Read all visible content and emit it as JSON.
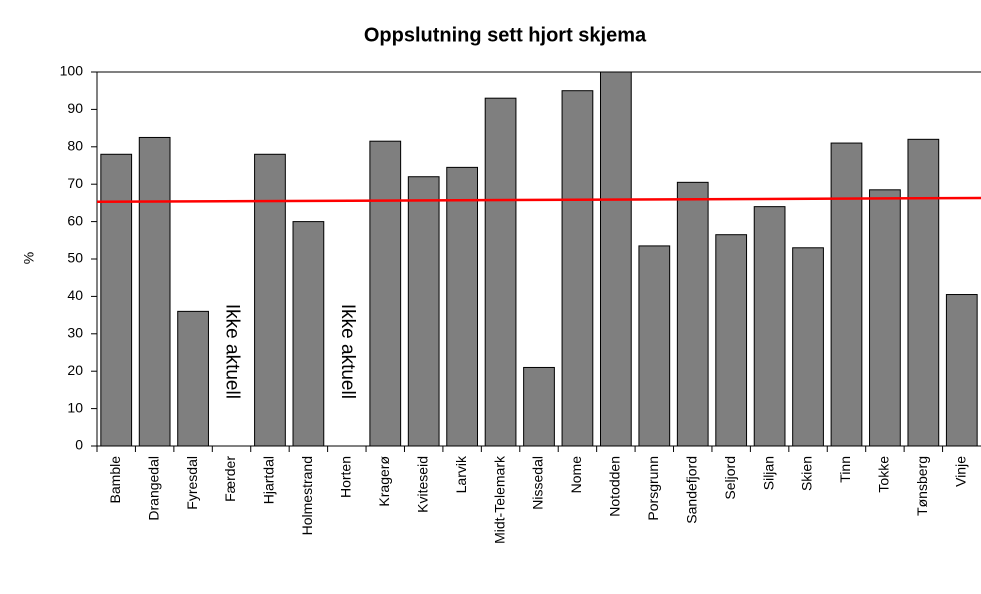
{
  "chart_data": {
    "type": "bar",
    "title": "Oppslutning sett hjort skjema",
    "ylabel": "%",
    "categories": [
      "Bamble",
      "Drangedal",
      "Fyresdal",
      "Færder",
      "Hjartdal",
      "Holmestrand",
      "Horten",
      "Kragerø",
      "Kviteseid",
      "Larvik",
      "Midt-Telemark",
      "Nissedal",
      "Nome",
      "Notodden",
      "Porsgrunn",
      "Sandefjord",
      "Seljord",
      "Siljan",
      "Skien",
      "Tinn",
      "Tokke",
      "Tønsberg",
      "Vinje"
    ],
    "values": [
      78,
      82.5,
      36,
      null,
      78,
      60,
      null,
      81.5,
      72,
      74.5,
      93,
      21,
      95,
      100,
      53.5,
      70.5,
      56.5,
      64,
      53,
      81,
      68.5,
      82,
      40.5
    ],
    "annotations": [
      null,
      null,
      null,
      "Ikke aktuell",
      null,
      null,
      "Ikke aktuell",
      null,
      null,
      null,
      null,
      null,
      null,
      null,
      null,
      null,
      null,
      null,
      null,
      null,
      null,
      null,
      null
    ],
    "color": "#7f7f7f",
    "reference_line": {
      "start": 65.3,
      "end": 66.3,
      "color": "#ff0000"
    },
    "ylim": [
      0,
      100
    ],
    "yticks": [
      0,
      10,
      20,
      30,
      40,
      50,
      60,
      70,
      80,
      90,
      100
    ],
    "grid": false
  }
}
